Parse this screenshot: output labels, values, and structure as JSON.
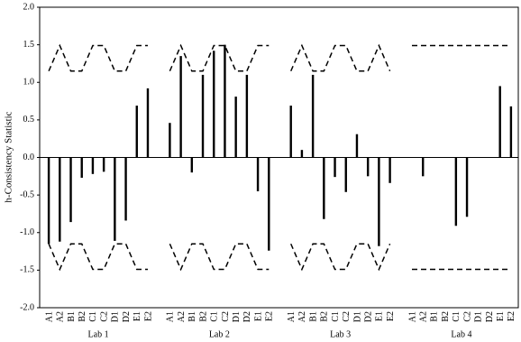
{
  "chart_data": {
    "type": "bar",
    "y_label": "h-Consistency Statistic",
    "categories": [
      "A1",
      "A2",
      "B1",
      "B2",
      "C1",
      "C2",
      "D1",
      "D2",
      "E1",
      "E2",
      null,
      "A1",
      "A2",
      "B1",
      "B2",
      "C1",
      "C2",
      "D1",
      "D2",
      "E1",
      "E2",
      null,
      "A1",
      "A2",
      "B1",
      "B2",
      "C1",
      "C2",
      "D1",
      "D2",
      "E1",
      "E2",
      null,
      "A1",
      "A2",
      "B1",
      "B2",
      "C1",
      "C2",
      "D1",
      "D2",
      "E1",
      "E2"
    ],
    "groups": [
      "Lab 1",
      "Lab 2",
      "Lab 3",
      "Lab 4"
    ],
    "series": [
      {
        "color": "#000000",
        "style": "bar",
        "values": [
          -1.15,
          -1.12,
          -0.86,
          -0.27,
          -0.22,
          -0.19,
          -1.11,
          -0.84,
          0.69,
          0.92,
          null,
          0.46,
          1.35,
          -0.2,
          1.1,
          1.42,
          1.5,
          0.81,
          1.1,
          -0.45,
          -1.24,
          null,
          0.69,
          0.1,
          1.1,
          -0.82,
          -0.26,
          -0.46,
          0.31,
          -0.25,
          -1.18,
          -0.34,
          null,
          0,
          -0.25,
          0,
          0,
          -0.91,
          -0.79,
          0,
          0,
          0.95,
          0.68
        ]
      },
      {
        "color": "#000000",
        "style": "dash",
        "values": [
          1.15,
          1.49,
          1.15,
          1.15,
          1.49,
          1.49,
          1.15,
          1.15,
          1.49,
          1.49,
          null,
          1.15,
          1.49,
          1.15,
          1.15,
          1.49,
          1.49,
          1.15,
          1.15,
          1.49,
          1.49,
          null,
          1.15,
          1.49,
          1.15,
          1.15,
          1.49,
          1.49,
          1.15,
          1.15,
          1.49,
          1.15,
          null,
          1.49,
          1.49,
          1.49,
          1.49,
          1.49,
          1.49,
          1.49,
          1.49,
          1.49,
          1.49
        ]
      },
      {
        "color": "#000000",
        "style": "dash",
        "values": [
          -1.15,
          -1.49,
          -1.15,
          -1.15,
          -1.49,
          -1.49,
          -1.15,
          -1.15,
          -1.49,
          -1.49,
          null,
          -1.15,
          -1.49,
          -1.15,
          -1.15,
          -1.49,
          -1.49,
          -1.15,
          -1.15,
          -1.49,
          -1.49,
          null,
          -1.15,
          -1.49,
          -1.15,
          -1.15,
          -1.49,
          -1.49,
          -1.15,
          -1.15,
          -1.49,
          -1.15,
          null,
          -1.49,
          -1.49,
          -1.49,
          -1.49,
          -1.49,
          -1.49,
          -1.49,
          -1.49,
          -1.49,
          -1.49
        ]
      }
    ],
    "ylim": [
      -2,
      2
    ],
    "yticks": [
      {
        "value": -2,
        "label": "-2.0"
      },
      -1.5,
      {
        "value": -1,
        "label": "-1.0"
      },
      -0.5,
      {
        "value": 0,
        "label": "0.0"
      },
      0.5,
      {
        "value": 1,
        "label": "1.0"
      },
      1.5,
      {
        "value": 2,
        "label": "2.0"
      }
    ]
  }
}
